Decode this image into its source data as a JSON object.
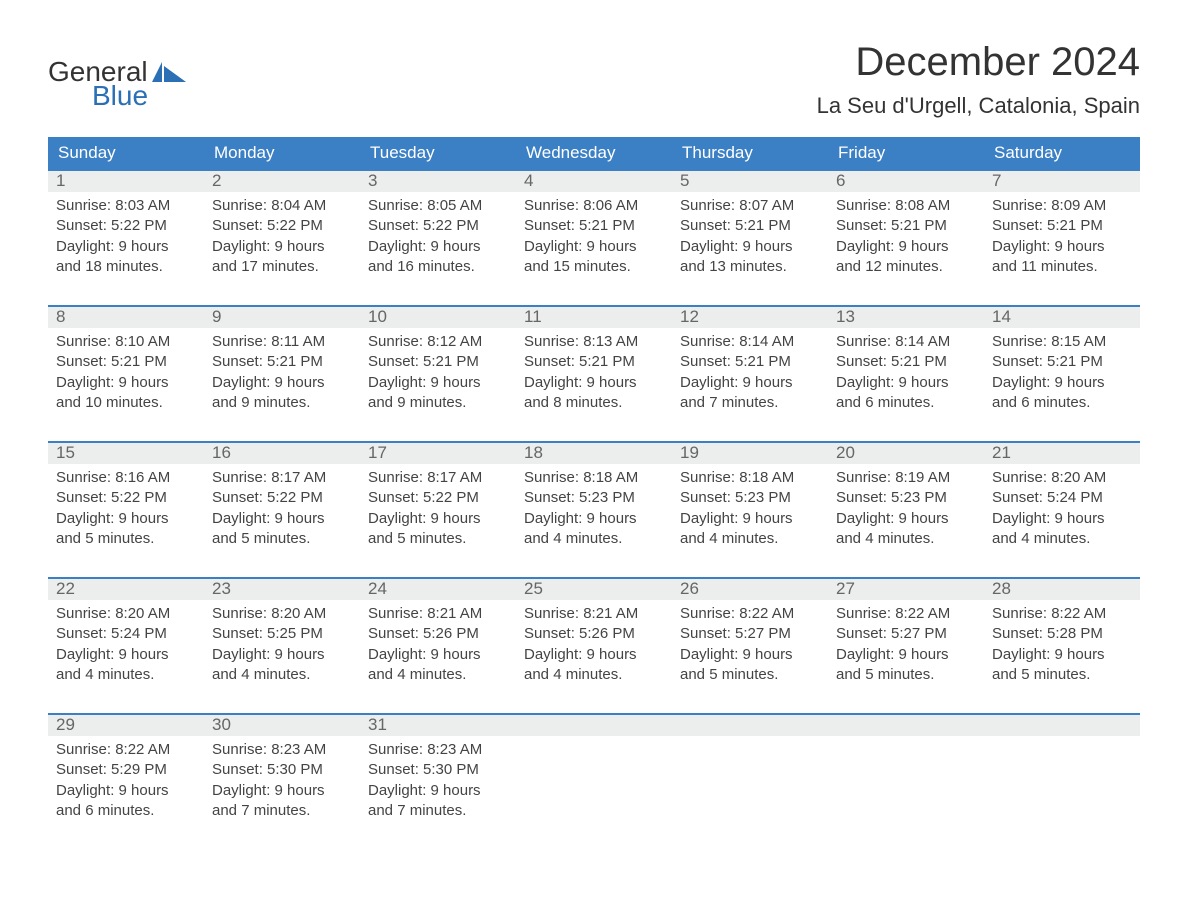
{
  "logo": {
    "text1": "General",
    "text2": "Blue",
    "accent_color": "#2b6fb5"
  },
  "title": "December 2024",
  "location": "La Seu d'Urgell, Catalonia, Spain",
  "colors": {
    "header_bg": "#3b7fc4",
    "header_text": "#ffffff",
    "date_bg": "#eceded",
    "date_text": "#666666",
    "border": "#3b7fc4",
    "body_text": "#444444"
  },
  "day_headers": [
    "Sunday",
    "Monday",
    "Tuesday",
    "Wednesday",
    "Thursday",
    "Friday",
    "Saturday"
  ],
  "weeks": [
    [
      {
        "date": "1",
        "sunrise": "8:03 AM",
        "sunset": "5:22 PM",
        "daylight": "9 hours and 18 minutes."
      },
      {
        "date": "2",
        "sunrise": "8:04 AM",
        "sunset": "5:22 PM",
        "daylight": "9 hours and 17 minutes."
      },
      {
        "date": "3",
        "sunrise": "8:05 AM",
        "sunset": "5:22 PM",
        "daylight": "9 hours and 16 minutes."
      },
      {
        "date": "4",
        "sunrise": "8:06 AM",
        "sunset": "5:21 PM",
        "daylight": "9 hours and 15 minutes."
      },
      {
        "date": "5",
        "sunrise": "8:07 AM",
        "sunset": "5:21 PM",
        "daylight": "9 hours and 13 minutes."
      },
      {
        "date": "6",
        "sunrise": "8:08 AM",
        "sunset": "5:21 PM",
        "daylight": "9 hours and 12 minutes."
      },
      {
        "date": "7",
        "sunrise": "8:09 AM",
        "sunset": "5:21 PM",
        "daylight": "9 hours and 11 minutes."
      }
    ],
    [
      {
        "date": "8",
        "sunrise": "8:10 AM",
        "sunset": "5:21 PM",
        "daylight": "9 hours and 10 minutes."
      },
      {
        "date": "9",
        "sunrise": "8:11 AM",
        "sunset": "5:21 PM",
        "daylight": "9 hours and 9 minutes."
      },
      {
        "date": "10",
        "sunrise": "8:12 AM",
        "sunset": "5:21 PM",
        "daylight": "9 hours and 9 minutes."
      },
      {
        "date": "11",
        "sunrise": "8:13 AM",
        "sunset": "5:21 PM",
        "daylight": "9 hours and 8 minutes."
      },
      {
        "date": "12",
        "sunrise": "8:14 AM",
        "sunset": "5:21 PM",
        "daylight": "9 hours and 7 minutes."
      },
      {
        "date": "13",
        "sunrise": "8:14 AM",
        "sunset": "5:21 PM",
        "daylight": "9 hours and 6 minutes."
      },
      {
        "date": "14",
        "sunrise": "8:15 AM",
        "sunset": "5:21 PM",
        "daylight": "9 hours and 6 minutes."
      }
    ],
    [
      {
        "date": "15",
        "sunrise": "8:16 AM",
        "sunset": "5:22 PM",
        "daylight": "9 hours and 5 minutes."
      },
      {
        "date": "16",
        "sunrise": "8:17 AM",
        "sunset": "5:22 PM",
        "daylight": "9 hours and 5 minutes."
      },
      {
        "date": "17",
        "sunrise": "8:17 AM",
        "sunset": "5:22 PM",
        "daylight": "9 hours and 5 minutes."
      },
      {
        "date": "18",
        "sunrise": "8:18 AM",
        "sunset": "5:23 PM",
        "daylight": "9 hours and 4 minutes."
      },
      {
        "date": "19",
        "sunrise": "8:18 AM",
        "sunset": "5:23 PM",
        "daylight": "9 hours and 4 minutes."
      },
      {
        "date": "20",
        "sunrise": "8:19 AM",
        "sunset": "5:23 PM",
        "daylight": "9 hours and 4 minutes."
      },
      {
        "date": "21",
        "sunrise": "8:20 AM",
        "sunset": "5:24 PM",
        "daylight": "9 hours and 4 minutes."
      }
    ],
    [
      {
        "date": "22",
        "sunrise": "8:20 AM",
        "sunset": "5:24 PM",
        "daylight": "9 hours and 4 minutes."
      },
      {
        "date": "23",
        "sunrise": "8:20 AM",
        "sunset": "5:25 PM",
        "daylight": "9 hours and 4 minutes."
      },
      {
        "date": "24",
        "sunrise": "8:21 AM",
        "sunset": "5:26 PM",
        "daylight": "9 hours and 4 minutes."
      },
      {
        "date": "25",
        "sunrise": "8:21 AM",
        "sunset": "5:26 PM",
        "daylight": "9 hours and 4 minutes."
      },
      {
        "date": "26",
        "sunrise": "8:22 AM",
        "sunset": "5:27 PM",
        "daylight": "9 hours and 5 minutes."
      },
      {
        "date": "27",
        "sunrise": "8:22 AM",
        "sunset": "5:27 PM",
        "daylight": "9 hours and 5 minutes."
      },
      {
        "date": "28",
        "sunrise": "8:22 AM",
        "sunset": "5:28 PM",
        "daylight": "9 hours and 5 minutes."
      }
    ],
    [
      {
        "date": "29",
        "sunrise": "8:22 AM",
        "sunset": "5:29 PM",
        "daylight": "9 hours and 6 minutes."
      },
      {
        "date": "30",
        "sunrise": "8:23 AM",
        "sunset": "5:30 PM",
        "daylight": "9 hours and 7 minutes."
      },
      {
        "date": "31",
        "sunrise": "8:23 AM",
        "sunset": "5:30 PM",
        "daylight": "9 hours and 7 minutes."
      },
      null,
      null,
      null,
      null
    ]
  ],
  "labels": {
    "sunrise": "Sunrise:",
    "sunset": "Sunset:",
    "daylight": "Daylight:"
  }
}
